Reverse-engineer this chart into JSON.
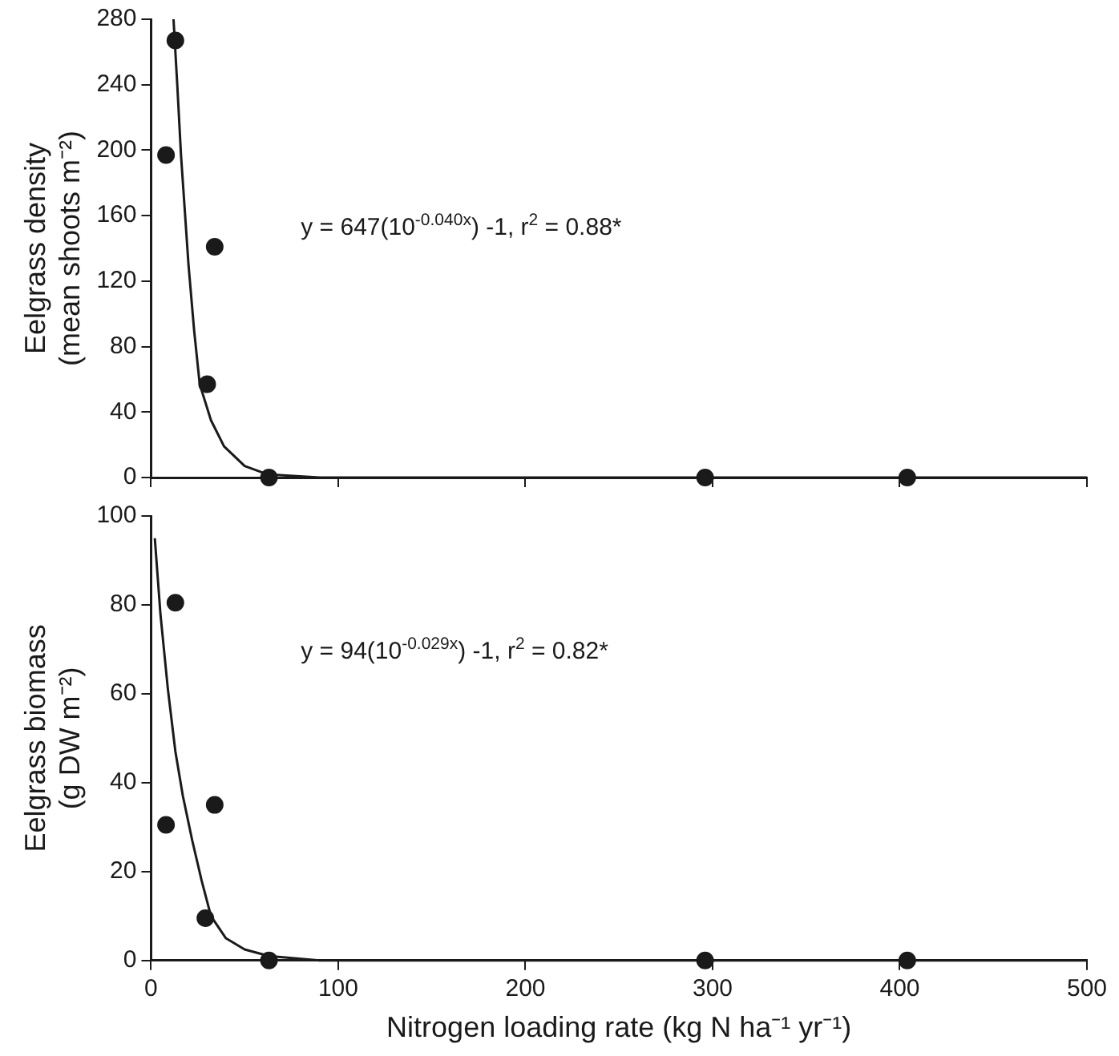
{
  "chart_data": [
    {
      "type": "scatter",
      "ylabel": "Eelgrass density\n(mean shoots m⁻²)",
      "xlim": [
        0,
        500
      ],
      "xticks": [
        0,
        100,
        200,
        300,
        400,
        500
      ],
      "ylim": [
        0,
        280
      ],
      "yticks": [
        0,
        40,
        80,
        120,
        160,
        200,
        240,
        280
      ],
      "tick_labels": "y",
      "grid": false,
      "legend": false,
      "annotations": [
        "y = 647(10$^{-0.040x}$) -1, r$^{2}$ = 0.88*"
      ],
      "series": [
        {
          "color": "#1a1a1a",
          "marker": "circle",
          "x": [
            8,
            13,
            30,
            34,
            63,
            296,
            404
          ],
          "values": [
            197,
            267,
            57,
            141,
            0,
            0,
            0
          ]
        },
        {
          "type": "line",
          "marker": "none",
          "color": "#1a1a1a",
          "x": [
            12,
            14,
            16,
            20,
            23,
            26,
            32,
            39,
            50,
            62,
            90,
            500
          ],
          "values": [
            280,
            240,
            197,
            130,
            90,
            57,
            35,
            19,
            7,
            2,
            0,
            0
          ]
        }
      ]
    },
    {
      "type": "scatter",
      "ylabel": "Eelgrass biomass\n(g DW m⁻²)",
      "xlabel": "Nitrogen loading rate (kg N ha⁻¹ yr⁻¹)",
      "xlim": [
        0,
        500
      ],
      "xticks": [
        0,
        100,
        200,
        300,
        400,
        500
      ],
      "ylim": [
        0,
        100
      ],
      "yticks": [
        0,
        20,
        40,
        60,
        80,
        100
      ],
      "grid": false,
      "legend": false,
      "annotations": [
        "y = 94(10$^{-0.029x}$) -1, r$^{2}$ = 0.82*"
      ],
      "series": [
        {
          "color": "#1a1a1a",
          "marker": "circle",
          "x": [
            8,
            13,
            29,
            34,
            63,
            296,
            404
          ],
          "values": [
            30.5,
            80.5,
            9.5,
            35,
            0,
            0,
            0
          ]
        },
        {
          "type": "line",
          "marker": "none",
          "color": "#1a1a1a",
          "x": [
            2,
            5,
            9,
            13,
            17,
            22,
            27,
            32,
            40,
            50,
            63,
            90,
            500
          ],
          "values": [
            95,
            78,
            61,
            47,
            37,
            27,
            18,
            10,
            5,
            2.5,
            1,
            0,
            0
          ]
        }
      ]
    }
  ]
}
